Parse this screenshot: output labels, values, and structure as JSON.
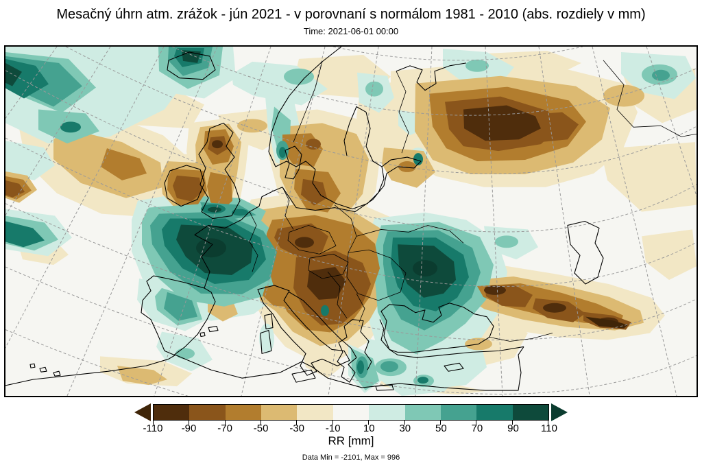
{
  "title": "Mesačný úhrn atm. zrážok - jún 2021 - v porovnaní s normálom 1981 - 2010 (abs. rozdiely v mm)",
  "subtitle": "Time: 2021-06-01 00:00",
  "footer": "Data Min = -2101, Max = 996",
  "palette": {
    "m110": "#4f2d0c",
    "m90": "#8a551b",
    "m70": "#b27d2e",
    "m50": "#dcba72",
    "m30": "#f2e7c5",
    "zero": "#f6f6f2",
    "p10": "#cfece3",
    "p30": "#7fc8b5",
    "p50": "#45a290",
    "p70": "#177a6a",
    "p90": "#0e4a3b",
    "under": "#3f2508",
    "over": "#0b3c2f"
  },
  "colorbar": {
    "label": "RR [mm]",
    "ticks": [
      "-110",
      "-90",
      "-70",
      "-50",
      "-30",
      "-10",
      "10",
      "30",
      "50",
      "70",
      "90",
      "110"
    ],
    "segment_colors": [
      "#4f2d0c",
      "#8a551b",
      "#b27d2e",
      "#dcba72",
      "#f2e7c5",
      "#f6f6f2",
      "#cfece3",
      "#7fc8b5",
      "#45a290",
      "#177a6a",
      "#0e4a3b"
    ],
    "under_color": "#3f2508",
    "over_color": "#0b3c2f"
  },
  "chart_data": {
    "type": "heatmap",
    "subtype": "filled-contour precipitation anomaly map",
    "region": "Europe and surrounding area",
    "title": "Mesačný úhrn atm. zrážok - jún 2021 - v porovnaní s normálom 1981 - 2010 (abs. rozdiely v mm)",
    "time": "2021-06-01 00:00",
    "units": "mm",
    "colorbar_label": "RR [mm]",
    "contour_levels": [
      -110,
      -90,
      -70,
      -50,
      -30,
      -10,
      10,
      30,
      50,
      70,
      90,
      110
    ],
    "data_min": -2101,
    "data_max": 996,
    "legend_position": "bottom",
    "notable_wet_anomalies": [
      "France and Benelux",
      "western Black Sea / Ukraine / Romania / Bulgaria",
      "English Channel coast",
      "Iceland and NW Atlantic",
      "Aegean and Greece spots"
    ],
    "notable_dry_anomalies": [
      "north-west Russia",
      "central Europe / Pannonian Basin / western Balkans",
      "British Isles",
      "southern Scandinavia / Denmark / Baltic",
      "Caucasus and north-eastern Turkey",
      "mid-Atlantic band"
    ]
  }
}
